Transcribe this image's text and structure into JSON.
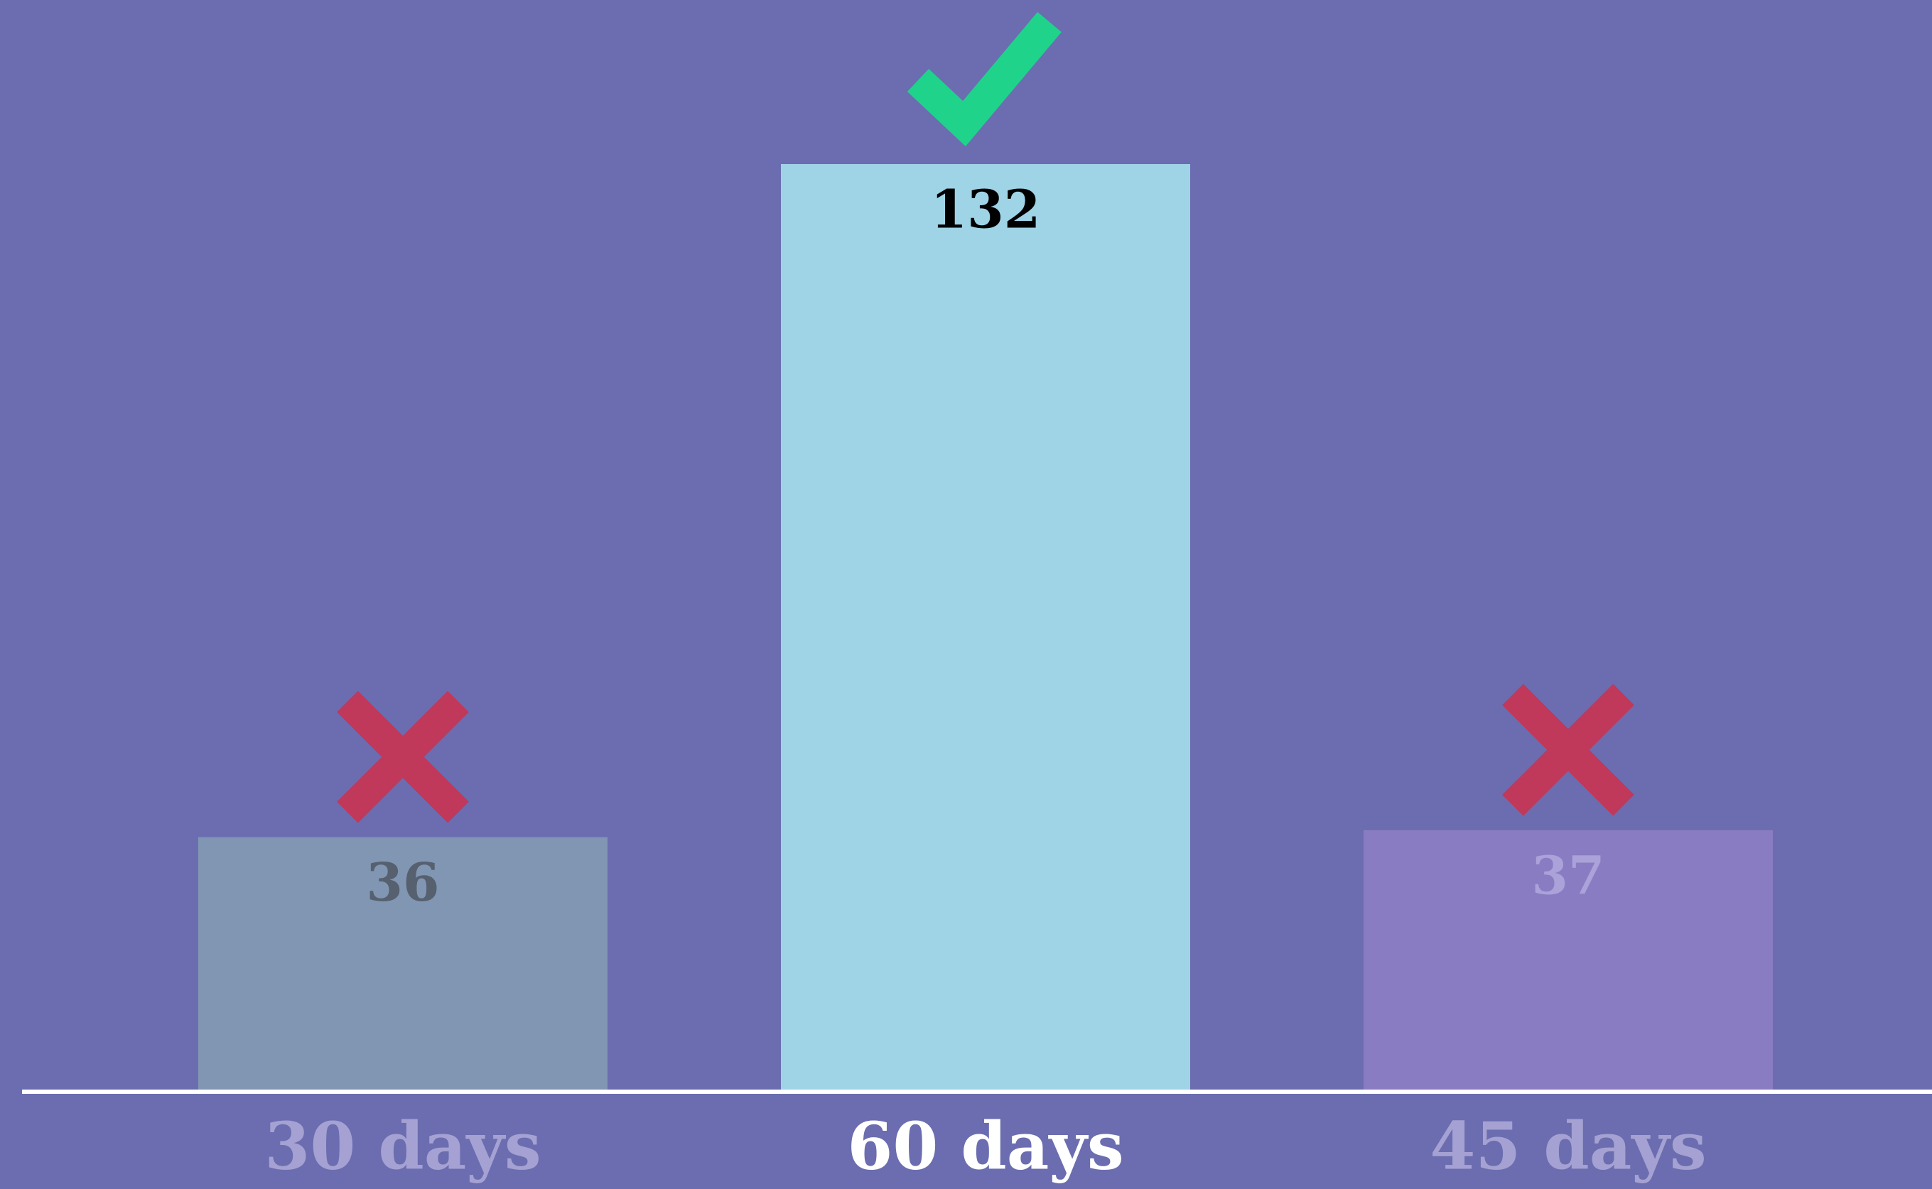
{
  "chart_data": {
    "type": "bar",
    "categories": [
      "30 days",
      "60 days",
      "45 days"
    ],
    "values": [
      36,
      132,
      37
    ],
    "colors": [
      "#8096b2",
      "#9fd3e6",
      "#8a7cc2"
    ],
    "value_label_colors": [
      "#56606f",
      "#000000",
      "#aaa2d8"
    ],
    "category_label_colors": [
      "#a5a1d2",
      "#ffffff",
      "#a5a1d2"
    ],
    "highlight": 1
  }
}
